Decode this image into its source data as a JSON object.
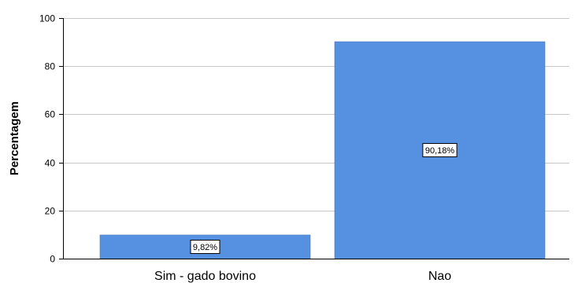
{
  "chart_data": {
    "type": "bar",
    "categories": [
      "Sim - gado bovino",
      "Nao"
    ],
    "values": [
      9.82,
      90.18
    ],
    "data_labels": [
      "9,82%",
      "90,18%"
    ],
    "ylabel": "Percentagem",
    "xlabel": "",
    "ylim": [
      0,
      100
    ],
    "yticks": [
      0,
      20,
      40,
      60,
      80,
      100
    ],
    "grid": true,
    "colors": {
      "bar": "#5591e0",
      "bar_stroke": "#3f74bd",
      "grid": "#c8c8c8"
    }
  }
}
